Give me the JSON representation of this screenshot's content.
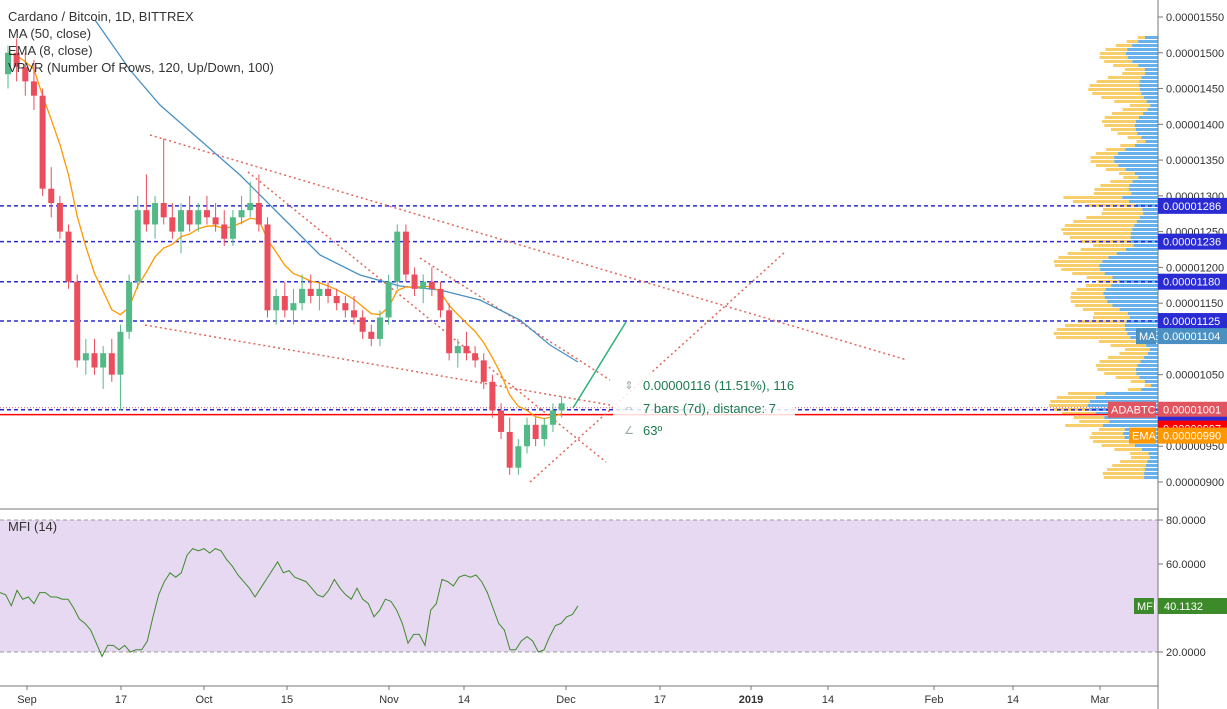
{
  "header": {
    "title": "Cardano / Bitcoin, 1D, BITTREX",
    "indicators": [
      "MA (50, close)",
      "EMA (8, close)",
      "VPVR (Number Of Rows, 120, Up/Down, 100)"
    ]
  },
  "mfi": {
    "label": "MFI (14)",
    "tag_label": "MFI",
    "value": "40.1132",
    "ticks": [
      "80.0000",
      "60.0000",
      "20.0000"
    ],
    "values": [
      47,
      46,
      41,
      48,
      44,
      45,
      42,
      47,
      47,
      45,
      45,
      44,
      44,
      40,
      35,
      33,
      30,
      24,
      18,
      23,
      23,
      21,
      23,
      20,
      21,
      21,
      25,
      36,
      46,
      52,
      56,
      54,
      56,
      64,
      67,
      66,
      67,
      65,
      67,
      66,
      62,
      59,
      55,
      52,
      49,
      45,
      49,
      53,
      57,
      61,
      56,
      57,
      54,
      53,
      52,
      49,
      46,
      45,
      48,
      53,
      49,
      46,
      44,
      49,
      44,
      42,
      36,
      39,
      44,
      43,
      39,
      33,
      24,
      28,
      28,
      23,
      39,
      42,
      53,
      52,
      50,
      54,
      55,
      54,
      55,
      52,
      47,
      40,
      33,
      30,
      21,
      21,
      25,
      27,
      25,
      20,
      21,
      27,
      32,
      33,
      36,
      37,
      41
    ]
  },
  "price_axis": {
    "ticks": [
      "0.00001550",
      "0.00001500",
      "0.00001450",
      "0.00001400",
      "0.00001350",
      "0.00001300",
      "0.00001250",
      "0.00001200",
      "0.00001150",
      "0.00001050",
      "0.00000950",
      "0.00000900"
    ]
  },
  "time_axis": {
    "labels": [
      "Sep",
      "17",
      "Oct",
      "15",
      "Nov",
      "14",
      "Dec",
      "17",
      "2019",
      "14",
      "Feb",
      "14",
      "Mar"
    ]
  },
  "hlines": [
    {
      "value": "0.00001286",
      "color": "#2b2bd4"
    },
    {
      "value": "0.00001236",
      "color": "#2b2bd4"
    },
    {
      "value": "0.00001180",
      "color": "#2b2bd4"
    },
    {
      "value": "0.00001125",
      "color": "#2b2bd4"
    },
    {
      "value": "0.00001001",
      "color": "#2b2bd4"
    }
  ],
  "tags": [
    {
      "label": "",
      "value": "0.00001286",
      "color": "#2b2bd4"
    },
    {
      "label": "",
      "value": "0.00001236",
      "color": "#2b2bd4"
    },
    {
      "label": "",
      "value": "0.00001180",
      "color": "#2b2bd4"
    },
    {
      "label": "",
      "value": "0.00001125",
      "color": "#2b2bd4"
    },
    {
      "label": "MA",
      "value": "0.00001104",
      "color": "#4a90c2"
    },
    {
      "label": "ADABTC",
      "value": "0.00001001",
      "color": "#e15561"
    },
    {
      "label": "",
      "value": "0.00001001",
      "color": "#2b2bd4"
    },
    {
      "label": "",
      "value": "0.00000997",
      "color": "#ff0000"
    },
    {
      "label": "EMA",
      "value": "0.00000990",
      "color": "#ff9800"
    }
  ],
  "measure": {
    "price_change": "0.00000116 (11.51%), 116",
    "bars": "7 bars (7d), distance: 7",
    "angle": "63º"
  },
  "colors": {
    "up": "#53b987",
    "down": "#eb4d5c",
    "ma": "#4a90c2",
    "ema": "#ff9800",
    "channel": "#e0675a",
    "mfi_line": "#3d8a2a",
    "mfi_bg": "#e8d9f3",
    "vp_up": "#4da3e6",
    "vp_down": "#f7c550"
  },
  "chart_data": {
    "type": "candlestick",
    "title": "Cardano / Bitcoin, 1D, BITTREX",
    "ylim": [
      8.8e-06,
      1.57e-05
    ],
    "candles": [
      [
        1.47e-05,
        1.51e-05,
        1.45e-05,
        1.5e-05
      ],
      [
        1.5e-05,
        1.52e-05,
        1.46e-05,
        1.48e-05
      ],
      [
        1.48e-05,
        1.5e-05,
        1.44e-05,
        1.46e-05
      ],
      [
        1.46e-05,
        1.49e-05,
        1.42e-05,
        1.44e-05
      ],
      [
        1.44e-05,
        1.45e-05,
        1.3e-05,
        1.31e-05
      ],
      [
        1.31e-05,
        1.34e-05,
        1.27e-05,
        1.29e-05
      ],
      [
        1.29e-05,
        1.3e-05,
        1.24e-05,
        1.25e-05
      ],
      [
        1.25e-05,
        1.26e-05,
        1.17e-05,
        1.18e-05
      ],
      [
        1.18e-05,
        1.19e-05,
        1.06e-05,
        1.07e-05
      ],
      [
        1.07e-05,
        1.1e-05,
        1.05e-05,
        1.08e-05
      ],
      [
        1.08e-05,
        1.1e-05,
        1.05e-05,
        1.06e-05
      ],
      [
        1.06e-05,
        1.09e-05,
        1.03e-05,
        1.08e-05
      ],
      [
        1.08e-05,
        1.1e-05,
        1.04e-05,
        1.05e-05
      ],
      [
        1.05e-05,
        1.12e-05,
        1e-05,
        1.11e-05
      ],
      [
        1.11e-05,
        1.19e-05,
        1.1e-05,
        1.18e-05
      ],
      [
        1.18e-05,
        1.3e-05,
        1.17e-05,
        1.28e-05
      ],
      [
        1.28e-05,
        1.33e-05,
        1.25e-05,
        1.26e-05
      ],
      [
        1.26e-05,
        1.3e-05,
        1.24e-05,
        1.29e-05
      ],
      [
        1.29e-05,
        1.38e-05,
        1.26e-05,
        1.27e-05
      ],
      [
        1.27e-05,
        1.29e-05,
        1.24e-05,
        1.25e-05
      ],
      [
        1.25e-05,
        1.29e-05,
        1.22e-05,
        1.28e-05
      ],
      [
        1.28e-05,
        1.3e-05,
        1.25e-05,
        1.26e-05
      ],
      [
        1.26e-05,
        1.29e-05,
        1.25e-05,
        1.28e-05
      ],
      [
        1.28e-05,
        1.3e-05,
        1.26e-05,
        1.27e-05
      ],
      [
        1.27e-05,
        1.29e-05,
        1.25e-05,
        1.26e-05
      ],
      [
        1.26e-05,
        1.28e-05,
        1.23e-05,
        1.24e-05
      ],
      [
        1.24e-05,
        1.28e-05,
        1.23e-05,
        1.27e-05
      ],
      [
        1.27e-05,
        1.3e-05,
        1.26e-05,
        1.28e-05
      ],
      [
        1.28e-05,
        1.32e-05,
        1.27e-05,
        1.29e-05
      ],
      [
        1.29e-05,
        1.33e-05,
        1.25e-05,
        1.26e-05
      ],
      [
        1.26e-05,
        1.27e-05,
        1.13e-05,
        1.14e-05
      ],
      [
        1.14e-05,
        1.17e-05,
        1.12e-05,
        1.16e-05
      ],
      [
        1.16e-05,
        1.18e-05,
        1.13e-05,
        1.14e-05
      ],
      [
        1.14e-05,
        1.17e-05,
        1.12e-05,
        1.15e-05
      ],
      [
        1.15e-05,
        1.19e-05,
        1.14e-05,
        1.17e-05
      ],
      [
        1.17e-05,
        1.19e-05,
        1.15e-05,
        1.16e-05
      ],
      [
        1.16e-05,
        1.18e-05,
        1.14e-05,
        1.17e-05
      ],
      [
        1.17e-05,
        1.18e-05,
        1.15e-05,
        1.16e-05
      ],
      [
        1.16e-05,
        1.17e-05,
        1.14e-05,
        1.15e-05
      ],
      [
        1.15e-05,
        1.16e-05,
        1.13e-05,
        1.14e-05
      ],
      [
        1.14e-05,
        1.16e-05,
        1.12e-05,
        1.13e-05
      ],
      [
        1.13e-05,
        1.14e-05,
        1.1e-05,
        1.11e-05
      ],
      [
        1.11e-05,
        1.12e-05,
        1.09e-05,
        1.1e-05
      ],
      [
        1.1e-05,
        1.14e-05,
        1.09e-05,
        1.13e-05
      ],
      [
        1.13e-05,
        1.19e-05,
        1.12e-05,
        1.18e-05
      ],
      [
        1.18e-05,
        1.26e-05,
        1.17e-05,
        1.25e-05
      ],
      [
        1.25e-05,
        1.26e-05,
        1.18e-05,
        1.19e-05
      ],
      [
        1.19e-05,
        1.2e-05,
        1.16e-05,
        1.17e-05
      ],
      [
        1.17e-05,
        1.19e-05,
        1.15e-05,
        1.18e-05
      ],
      [
        1.18e-05,
        1.2e-05,
        1.16e-05,
        1.17e-05
      ],
      [
        1.17e-05,
        1.18e-05,
        1.13e-05,
        1.14e-05
      ],
      [
        1.14e-05,
        1.15e-05,
        1.07e-05,
        1.08e-05
      ],
      [
        1.08e-05,
        1.1e-05,
        1.06e-05,
        1.09e-05
      ],
      [
        1.09e-05,
        1.11e-05,
        1.07e-05,
        1.08e-05
      ],
      [
        1.08e-05,
        1.09e-05,
        1.06e-05,
        1.07e-05
      ],
      [
        1.07e-05,
        1.08e-05,
        1.03e-05,
        1.04e-05
      ],
      [
        1.04e-05,
        1.05e-05,
        9.9e-06,
        1e-05
      ],
      [
        1e-05,
        1.01e-05,
        9.6e-06,
        9.7e-06
      ],
      [
        9.7e-06,
        9.9e-06,
        9.1e-06,
        9.2e-06
      ],
      [
        9.2e-06,
        9.6e-06,
        9.1e-06,
        9.5e-06
      ],
      [
        9.5e-06,
        9.9e-06,
        9.4e-06,
        9.8e-06
      ],
      [
        9.8e-06,
        9.9e-06,
        9.5e-06,
        9.6e-06
      ],
      [
        9.6e-06,
        9.9e-06,
        9.5e-06,
        9.8e-06
      ],
      [
        9.8e-06,
        1.01e-05,
        9.7e-06,
        1e-05
      ],
      [
        1e-05,
        1.02e-05,
        9.9e-06,
        1.01e-05
      ]
    ]
  }
}
